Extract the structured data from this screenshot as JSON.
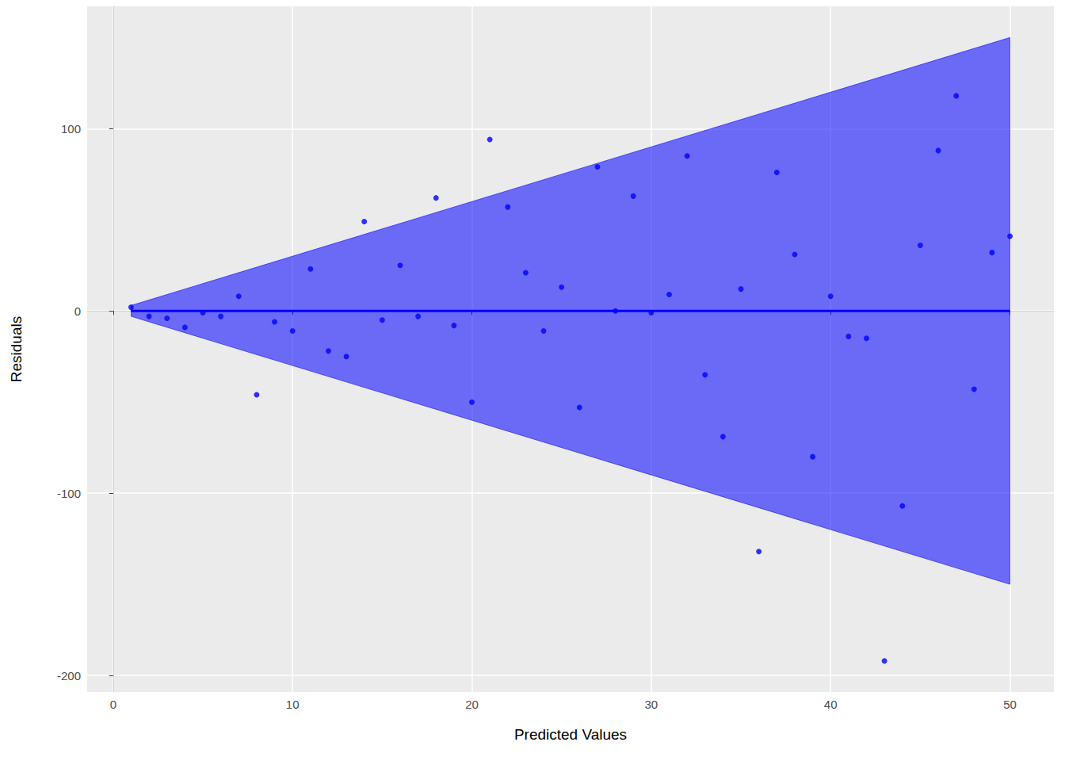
{
  "chart_data": {
    "type": "scatter",
    "x_label": "Predicted Values",
    "y_label": "Residuals",
    "color": "#0000ff",
    "grid": true,
    "xlim": [
      -1.45,
      52.45
    ],
    "ylim": [
      -209.1,
      167.1
    ],
    "xticks": [
      0,
      10,
      20,
      30,
      40,
      50
    ],
    "yticks": [
      -200,
      -100,
      0,
      100
    ],
    "x": [
      1,
      2,
      3,
      4,
      5,
      6,
      7,
      8,
      9,
      10,
      11,
      12,
      13,
      14,
      15,
      16,
      17,
      18,
      19,
      20,
      21,
      22,
      23,
      24,
      25,
      26,
      27,
      28,
      29,
      30,
      31,
      32,
      33,
      34,
      35,
      36,
      37,
      38,
      39,
      40,
      41,
      42,
      43,
      44,
      45,
      46,
      47,
      48,
      49,
      50
    ],
    "values": [
      2,
      -3,
      -4,
      -9,
      -1,
      -3,
      8,
      -46,
      -6,
      -11,
      23,
      -22,
      -25,
      49,
      -5,
      25,
      -3,
      62,
      -8,
      -50,
      94,
      57,
      21,
      -11,
      13,
      -53,
      79,
      0,
      63,
      -1,
      9,
      85,
      -35,
      -69,
      12,
      -132,
      76,
      31,
      -80,
      8,
      -14,
      -15,
      -192,
      -107,
      36,
      88,
      118,
      -43,
      32,
      41
    ],
    "band": {
      "x": [
        1,
        50
      ],
      "lower": [
        -3,
        -150
      ],
      "upper": [
        3,
        150
      ]
    },
    "reference_line": {
      "x": [
        1,
        50
      ],
      "y": [
        0,
        0
      ]
    }
  }
}
